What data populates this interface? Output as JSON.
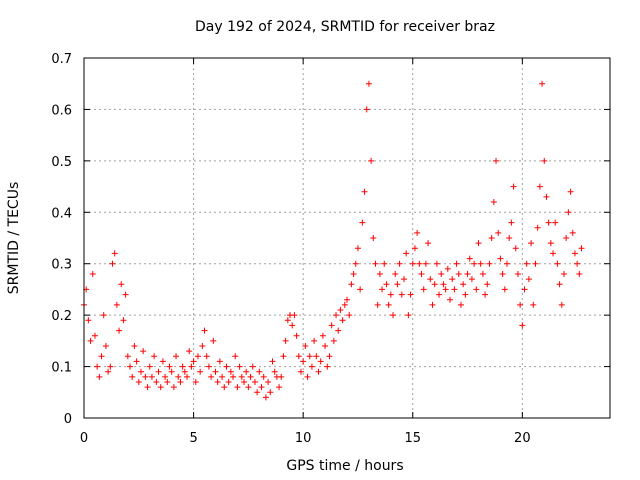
{
  "colors": {
    "series": "#ff0000",
    "grid": "#a0a0a0",
    "frame": "#000000",
    "background": "#ffffff"
  },
  "chart_data": {
    "type": "scatter",
    "title": "Day 192 of 2024, SRMTID for receiver braz",
    "xlabel": "GPS time / hours",
    "ylabel": "SRMTID / TECUs",
    "xlim": [
      0,
      24
    ],
    "ylim": [
      0,
      0.7
    ],
    "xticks": [
      0,
      5,
      10,
      15,
      20
    ],
    "xtick_labels": [
      "0",
      "5",
      "10",
      "15",
      "20"
    ],
    "yticks": [
      0,
      0.1,
      0.2,
      0.3,
      0.4,
      0.5,
      0.6,
      0.7
    ],
    "ytick_labels": [
      "0",
      "0.1",
      "0.2",
      "0.3",
      "0.4",
      "0.5",
      "0.6",
      "0.7"
    ],
    "grid": true,
    "marker": "plus",
    "series": [
      {
        "name": "SRMTID",
        "x": [
          0.0,
          0.1,
          0.2,
          0.3,
          0.4,
          0.5,
          0.6,
          0.7,
          0.8,
          0.9,
          1.0,
          1.1,
          1.2,
          1.3,
          1.4,
          1.5,
          1.6,
          1.7,
          1.8,
          1.9,
          2.0,
          2.1,
          2.2,
          2.3,
          2.4,
          2.5,
          2.6,
          2.7,
          2.8,
          2.9,
          3.0,
          3.1,
          3.2,
          3.3,
          3.4,
          3.5,
          3.6,
          3.7,
          3.8,
          3.9,
          4.0,
          4.1,
          4.2,
          4.3,
          4.4,
          4.5,
          4.6,
          4.7,
          4.8,
          4.9,
          5.0,
          5.1,
          5.2,
          5.3,
          5.4,
          5.5,
          5.6,
          5.7,
          5.8,
          5.9,
          6.0,
          6.1,
          6.2,
          6.3,
          6.4,
          6.5,
          6.6,
          6.7,
          6.8,
          6.9,
          7.0,
          7.1,
          7.2,
          7.3,
          7.4,
          7.5,
          7.6,
          7.7,
          7.8,
          7.9,
          8.0,
          8.1,
          8.2,
          8.3,
          8.4,
          8.5,
          8.6,
          8.7,
          8.8,
          8.9,
          9.0,
          9.1,
          9.2,
          9.3,
          9.4,
          9.5,
          9.6,
          9.7,
          9.8,
          9.9,
          10.0,
          10.1,
          10.2,
          10.3,
          10.4,
          10.5,
          10.6,
          10.7,
          10.8,
          10.9,
          11.0,
          11.1,
          11.2,
          11.3,
          11.4,
          11.5,
          11.6,
          11.7,
          11.8,
          11.9,
          12.0,
          12.1,
          12.2,
          12.3,
          12.4,
          12.5,
          12.6,
          12.7,
          12.8,
          12.9,
          13.0,
          13.1,
          13.2,
          13.3,
          13.4,
          13.5,
          13.6,
          13.7,
          13.8,
          13.9,
          14.0,
          14.1,
          14.2,
          14.3,
          14.4,
          14.5,
          14.6,
          14.7,
          14.8,
          14.9,
          15.0,
          15.1,
          15.2,
          15.3,
          15.4,
          15.5,
          15.6,
          15.7,
          15.8,
          15.9,
          16.0,
          16.1,
          16.2,
          16.3,
          16.4,
          16.5,
          16.6,
          16.7,
          16.8,
          16.9,
          17.0,
          17.1,
          17.2,
          17.3,
          17.4,
          17.5,
          17.6,
          17.7,
          17.8,
          17.9,
          18.0,
          18.1,
          18.2,
          18.3,
          18.4,
          18.5,
          18.6,
          18.7,
          18.8,
          18.9,
          19.0,
          19.1,
          19.2,
          19.3,
          19.4,
          19.5,
          19.6,
          19.7,
          19.8,
          19.9,
          20.0,
          20.1,
          20.2,
          20.3,
          20.4,
          20.5,
          20.6,
          20.7,
          20.8,
          20.9,
          21.0,
          21.1,
          21.2,
          21.3,
          21.4,
          21.5,
          21.6,
          21.7,
          21.8,
          21.9,
          22.0,
          22.1,
          22.2,
          22.3,
          22.4,
          22.5,
          22.6,
          22.7
        ],
        "y": [
          0.22,
          0.25,
          0.19,
          0.15,
          0.28,
          0.16,
          0.1,
          0.08,
          0.12,
          0.2,
          0.14,
          0.09,
          0.1,
          0.3,
          0.32,
          0.22,
          0.17,
          0.26,
          0.19,
          0.24,
          0.12,
          0.1,
          0.08,
          0.14,
          0.11,
          0.07,
          0.09,
          0.13,
          0.08,
          0.06,
          0.1,
          0.08,
          0.12,
          0.07,
          0.09,
          0.06,
          0.11,
          0.08,
          0.07,
          0.1,
          0.09,
          0.06,
          0.12,
          0.08,
          0.07,
          0.1,
          0.09,
          0.08,
          0.13,
          0.1,
          0.11,
          0.07,
          0.12,
          0.09,
          0.14,
          0.17,
          0.12,
          0.1,
          0.08,
          0.15,
          0.09,
          0.07,
          0.11,
          0.08,
          0.06,
          0.1,
          0.07,
          0.09,
          0.08,
          0.12,
          0.06,
          0.1,
          0.08,
          0.07,
          0.09,
          0.06,
          0.08,
          0.1,
          0.07,
          0.05,
          0.09,
          0.06,
          0.08,
          0.04,
          0.07,
          0.05,
          0.11,
          0.09,
          0.08,
          0.06,
          0.08,
          0.12,
          0.15,
          0.19,
          0.2,
          0.18,
          0.2,
          0.16,
          0.12,
          0.09,
          0.11,
          0.14,
          0.08,
          0.12,
          0.1,
          0.15,
          0.12,
          0.09,
          0.11,
          0.16,
          0.14,
          0.1,
          0.12,
          0.18,
          0.15,
          0.2,
          0.17,
          0.21,
          0.19,
          0.22,
          0.23,
          0.2,
          0.26,
          0.28,
          0.3,
          0.33,
          0.25,
          0.38,
          0.44,
          0.6,
          0.65,
          0.5,
          0.35,
          0.3,
          0.22,
          0.28,
          0.25,
          0.3,
          0.26,
          0.22,
          0.24,
          0.2,
          0.28,
          0.26,
          0.3,
          0.24,
          0.27,
          0.32,
          0.2,
          0.24,
          0.3,
          0.33,
          0.36,
          0.3,
          0.28,
          0.25,
          0.3,
          0.34,
          0.27,
          0.22,
          0.26,
          0.3,
          0.24,
          0.28,
          0.26,
          0.25,
          0.29,
          0.23,
          0.27,
          0.25,
          0.3,
          0.28,
          0.22,
          0.26,
          0.24,
          0.28,
          0.31,
          0.27,
          0.3,
          0.25,
          0.34,
          0.3,
          0.28,
          0.24,
          0.26,
          0.3,
          0.35,
          0.42,
          0.5,
          0.36,
          0.31,
          0.28,
          0.25,
          0.3,
          0.35,
          0.38,
          0.45,
          0.33,
          0.28,
          0.22,
          0.18,
          0.25,
          0.3,
          0.27,
          0.34,
          0.22,
          0.3,
          0.37,
          0.45,
          0.65,
          0.5,
          0.43,
          0.38,
          0.34,
          0.32,
          0.38,
          0.3,
          0.26,
          0.22,
          0.28,
          0.35,
          0.4,
          0.44,
          0.36,
          0.32,
          0.3,
          0.28,
          0.33
        ]
      }
    ]
  }
}
